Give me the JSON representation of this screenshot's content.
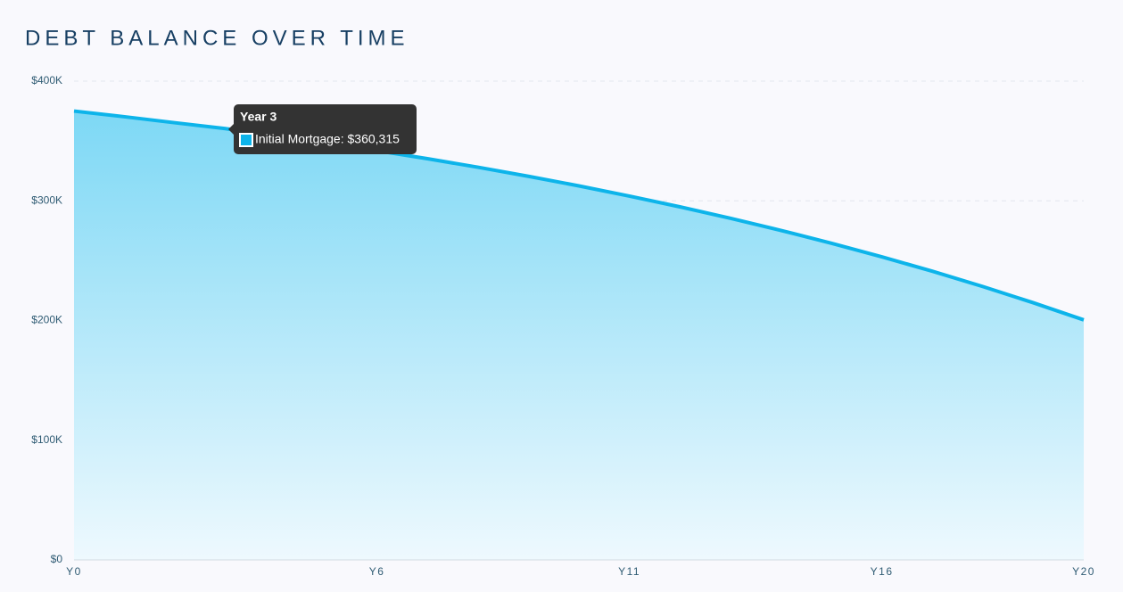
{
  "chart_data": {
    "type": "area",
    "title": "DEBT BALANCE OVER TIME",
    "categories": [
      "Y0",
      null,
      null,
      null,
      null,
      null,
      "Y6",
      null,
      null,
      null,
      null,
      "Y11",
      null,
      null,
      null,
      null,
      "Y16",
      null,
      null,
      null,
      "Y20"
    ],
    "values": [
      375000,
      370257,
      365229,
      360315,
      354246,
      348262,
      341913,
      335186,
      328055,
      320489,
      312481,
      303983,
      294978,
      285436,
      275317,
      264589,
      253221,
      241173,
      228406,
      214864,
      200515
    ],
    "color": "#0db4ea",
    "ylim": [
      0,
      400000
    ],
    "yticks": [
      {
        "value": 0,
        "label": "$0"
      },
      {
        "value": 100000,
        "label": "$100K"
      },
      {
        "value": 200000,
        "label": "$200K"
      },
      {
        "value": 300000,
        "label": "$300K"
      },
      {
        "value": 400000,
        "label": "$400K"
      }
    ],
    "grid": true,
    "tooltip": {
      "title": "Year 3",
      "text": "Initial Mortgage: $360,315"
    }
  }
}
